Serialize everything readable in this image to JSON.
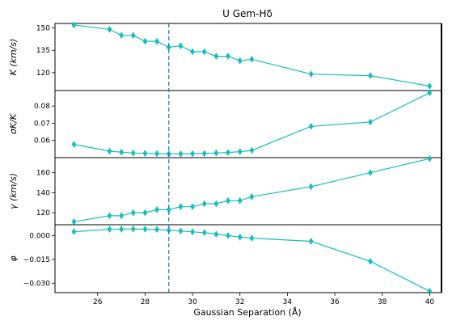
{
  "chart_data": {
    "type": "line",
    "title": "U Gem-Hδ",
    "xlabel": "Gaussian Separation (Å)",
    "xlim": [
      24.2,
      40.5
    ],
    "x_ticks": [
      26,
      28,
      30,
      32,
      34,
      36,
      38,
      40
    ],
    "x_tick_labels": [
      "26",
      "28",
      "30",
      "32",
      "34",
      "36",
      "38",
      "40"
    ],
    "x": [
      25,
      26.5,
      27,
      27.5,
      28,
      28.5,
      29,
      29.5,
      30,
      30.5,
      31,
      31.5,
      32,
      32.5,
      35,
      37.5,
      40
    ],
    "line_color": "#17bebb",
    "marker": "diamond",
    "vline": {
      "x": 29,
      "color": "#1f77b4",
      "style": "dashed"
    },
    "panels": [
      {
        "ylabel": "K   (km/s)",
        "ylim": [
          108,
          153
        ],
        "y_ticks": [
          120,
          135,
          150
        ],
        "y_tick_labels": [
          "120",
          "135",
          "150"
        ],
        "values": [
          152,
          149,
          145,
          145,
          141,
          141,
          137,
          138,
          134,
          134,
          131,
          131,
          128,
          129,
          119,
          118,
          111
        ]
      },
      {
        "ylabel": "σK/K",
        "ylim": [
          0.05,
          0.089
        ],
        "y_ticks": [
          0.06,
          0.07,
          0.08
        ],
        "y_tick_labels": [
          "0.06",
          "0.07",
          "0.08"
        ],
        "values": [
          0.0577,
          0.0537,
          0.0532,
          0.0527,
          0.0525,
          0.0523,
          0.0522,
          0.0522,
          0.0523,
          0.0524,
          0.0527,
          0.053,
          0.0535,
          0.0542,
          0.0682,
          0.0707,
          0.0877
        ]
      },
      {
        "ylabel": "γ   (km/s)",
        "ylim": [
          108,
          175
        ],
        "y_ticks": [
          120,
          140,
          160
        ],
        "y_tick_labels": [
          "120",
          "140",
          "160"
        ],
        "values": [
          111,
          117,
          117,
          120,
          120,
          123,
          123,
          126,
          126,
          129,
          129,
          132,
          132,
          136,
          146,
          160,
          174
        ]
      },
      {
        "ylabel": "φ",
        "ylim": [
          -0.036,
          0.007
        ],
        "y_ticks": [
          0.0,
          -0.015,
          -0.03
        ],
        "y_tick_labels": [
          "0.000",
          "−0.015",
          "−0.030"
        ],
        "values": [
          0.0026,
          0.0041,
          0.0042,
          0.0043,
          0.0042,
          0.004,
          0.0035,
          0.003,
          0.0025,
          0.002,
          0.001,
          0.0001,
          -0.0008,
          -0.0015,
          -0.0035,
          -0.0162,
          -0.0351
        ]
      }
    ]
  }
}
